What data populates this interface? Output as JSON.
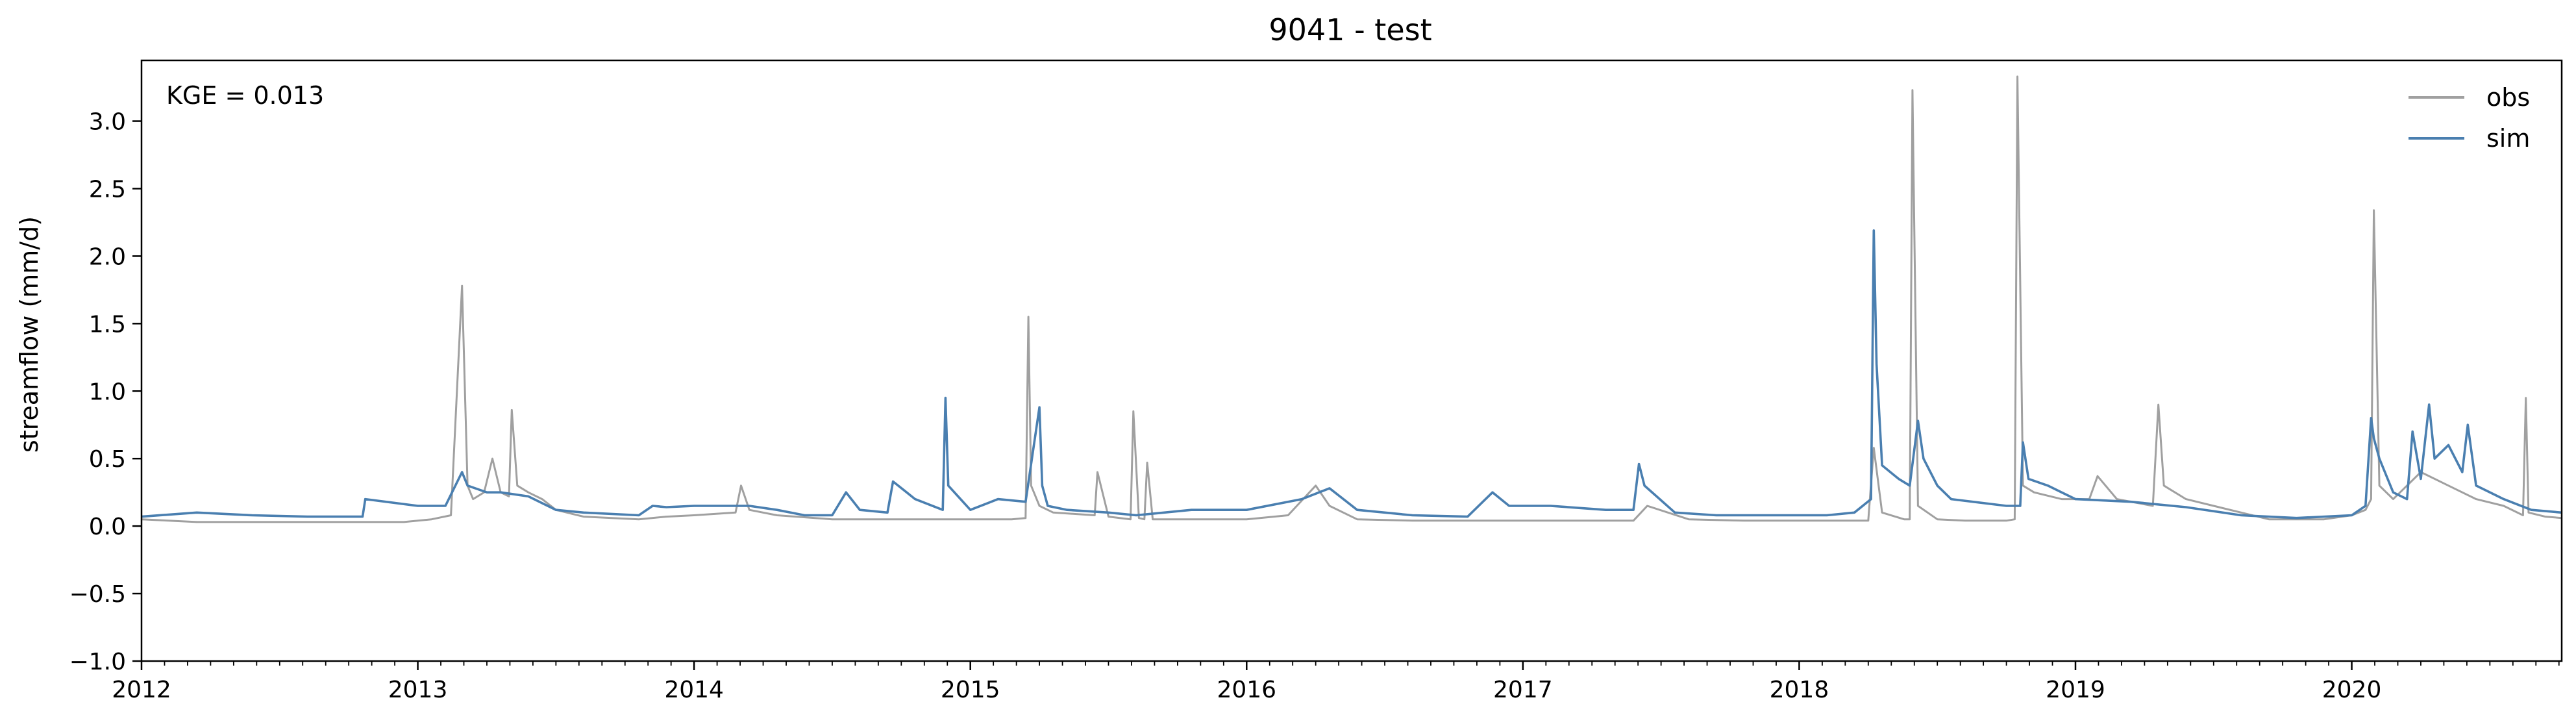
{
  "chart_data": {
    "type": "line",
    "title": "9041 - test",
    "ylabel": "streamflow (mm/d)",
    "xlabel": "",
    "annotation": "KGE = 0.013",
    "xlim": [
      2012.0,
      2020.76
    ],
    "ylim": [
      -1.0,
      3.45
    ],
    "x_ticks": [
      2012,
      2013,
      2014,
      2015,
      2016,
      2017,
      2018,
      2019,
      2020
    ],
    "y_ticks": [
      -1.0,
      -0.5,
      0.0,
      0.5,
      1.0,
      1.5,
      2.0,
      2.5,
      3.0
    ],
    "y_tick_labels": [
      "−1.0",
      "−0.5",
      "0.0",
      "0.5",
      "1.0",
      "1.5",
      "2.0",
      "2.5",
      "3.0"
    ],
    "legend_position": "top-right",
    "grid": false,
    "series": [
      {
        "name": "obs",
        "color": "#a0a0a0",
        "x": [
          2012.0,
          2012.2,
          2012.4,
          2012.6,
          2012.8,
          2012.95,
          2013.05,
          2013.12,
          2013.16,
          2013.18,
          2013.2,
          2013.24,
          2013.27,
          2013.3,
          2013.33,
          2013.34,
          2013.36,
          2013.4,
          2013.45,
          2013.5,
          2013.6,
          2013.8,
          2013.9,
          2014.0,
          2014.15,
          2014.17,
          2014.2,
          2014.3,
          2014.5,
          2014.7,
          2014.9,
          2015.0,
          2015.15,
          2015.2,
          2015.21,
          2015.22,
          2015.25,
          2015.3,
          2015.45,
          2015.46,
          2015.5,
          2015.58,
          2015.59,
          2015.61,
          2015.63,
          2015.64,
          2015.66,
          2015.8,
          2016.0,
          2016.15,
          2016.25,
          2016.3,
          2016.4,
          2016.6,
          2016.8,
          2017.0,
          2017.2,
          2017.4,
          2017.45,
          2017.6,
          2017.8,
          2018.0,
          2018.2,
          2018.25,
          2018.27,
          2018.3,
          2018.38,
          2018.4,
          2018.41,
          2018.43,
          2018.5,
          2018.6,
          2018.75,
          2018.78,
          2018.79,
          2018.81,
          2018.85,
          2018.95,
          2019.05,
          2019.08,
          2019.15,
          2019.28,
          2019.3,
          2019.32,
          2019.4,
          2019.5,
          2019.7,
          2019.9,
          2020.0,
          2020.05,
          2020.07,
          2020.08,
          2020.1,
          2020.15,
          2020.25,
          2020.35,
          2020.45,
          2020.55,
          2020.62,
          2020.63,
          2020.64,
          2020.7,
          2020.76
        ],
        "y": [
          0.05,
          0.03,
          0.03,
          0.03,
          0.03,
          0.03,
          0.05,
          0.08,
          1.78,
          0.3,
          0.2,
          0.25,
          0.5,
          0.25,
          0.22,
          0.86,
          0.3,
          0.25,
          0.2,
          0.12,
          0.07,
          0.05,
          0.07,
          0.08,
          0.1,
          0.3,
          0.12,
          0.08,
          0.05,
          0.05,
          0.05,
          0.05,
          0.05,
          0.06,
          1.55,
          0.3,
          0.15,
          0.1,
          0.08,
          0.4,
          0.07,
          0.05,
          0.85,
          0.06,
          0.05,
          0.47,
          0.05,
          0.05,
          0.05,
          0.08,
          0.3,
          0.15,
          0.05,
          0.04,
          0.04,
          0.04,
          0.04,
          0.04,
          0.15,
          0.05,
          0.04,
          0.04,
          0.04,
          0.04,
          0.58,
          0.1,
          0.05,
          0.05,
          3.23,
          0.15,
          0.05,
          0.04,
          0.04,
          0.05,
          3.33,
          0.3,
          0.25,
          0.2,
          0.2,
          0.37,
          0.2,
          0.15,
          0.9,
          0.3,
          0.2,
          0.15,
          0.05,
          0.05,
          0.08,
          0.12,
          0.2,
          2.34,
          0.3,
          0.2,
          0.4,
          0.3,
          0.2,
          0.15,
          0.08,
          0.95,
          0.1,
          0.07,
          0.06
        ]
      },
      {
        "name": "sim",
        "color": "#4a7fb0",
        "x": [
          2012.0,
          2012.2,
          2012.4,
          2012.6,
          2012.8,
          2012.81,
          2013.0,
          2013.1,
          2013.16,
          2013.18,
          2013.25,
          2013.3,
          2013.4,
          2013.5,
          2013.6,
          2013.8,
          2013.85,
          2013.9,
          2014.0,
          2014.2,
          2014.3,
          2014.4,
          2014.5,
          2014.55,
          2014.6,
          2014.7,
          2014.72,
          2014.8,
          2014.9,
          2014.91,
          2014.92,
          2015.0,
          2015.1,
          2015.2,
          2015.25,
          2015.26,
          2015.28,
          2015.35,
          2015.5,
          2015.6,
          2015.8,
          2016.0,
          2016.2,
          2016.3,
          2016.4,
          2016.6,
          2016.8,
          2016.89,
          2016.95,
          2017.1,
          2017.3,
          2017.4,
          2017.42,
          2017.44,
          2017.55,
          2017.7,
          2017.9,
          2018.1,
          2018.2,
          2018.26,
          2018.27,
          2018.28,
          2018.3,
          2018.36,
          2018.4,
          2018.43,
          2018.45,
          2018.5,
          2018.55,
          2018.75,
          2018.8,
          2018.81,
          2018.83,
          2018.9,
          2019.0,
          2019.2,
          2019.4,
          2019.6,
          2019.8,
          2020.0,
          2020.05,
          2020.07,
          2020.08,
          2020.1,
          2020.15,
          2020.2,
          2020.22,
          2020.25,
          2020.28,
          2020.3,
          2020.35,
          2020.4,
          2020.42,
          2020.45,
          2020.55,
          2020.65,
          2020.76
        ],
        "y": [
          0.07,
          0.1,
          0.08,
          0.07,
          0.07,
          0.2,
          0.15,
          0.15,
          0.4,
          0.3,
          0.25,
          0.25,
          0.22,
          0.12,
          0.1,
          0.08,
          0.15,
          0.14,
          0.15,
          0.15,
          0.12,
          0.08,
          0.08,
          0.25,
          0.12,
          0.1,
          0.33,
          0.2,
          0.12,
          0.95,
          0.3,
          0.12,
          0.2,
          0.18,
          0.88,
          0.3,
          0.15,
          0.12,
          0.1,
          0.08,
          0.12,
          0.12,
          0.2,
          0.28,
          0.12,
          0.08,
          0.07,
          0.25,
          0.15,
          0.15,
          0.12,
          0.12,
          0.46,
          0.3,
          0.1,
          0.08,
          0.08,
          0.08,
          0.1,
          0.2,
          2.19,
          1.2,
          0.45,
          0.35,
          0.3,
          0.78,
          0.5,
          0.3,
          0.2,
          0.15,
          0.15,
          0.62,
          0.35,
          0.3,
          0.2,
          0.18,
          0.14,
          0.08,
          0.06,
          0.08,
          0.15,
          0.8,
          0.65,
          0.5,
          0.25,
          0.2,
          0.7,
          0.35,
          0.9,
          0.5,
          0.6,
          0.4,
          0.75,
          0.3,
          0.2,
          0.12,
          0.1
        ]
      }
    ]
  }
}
